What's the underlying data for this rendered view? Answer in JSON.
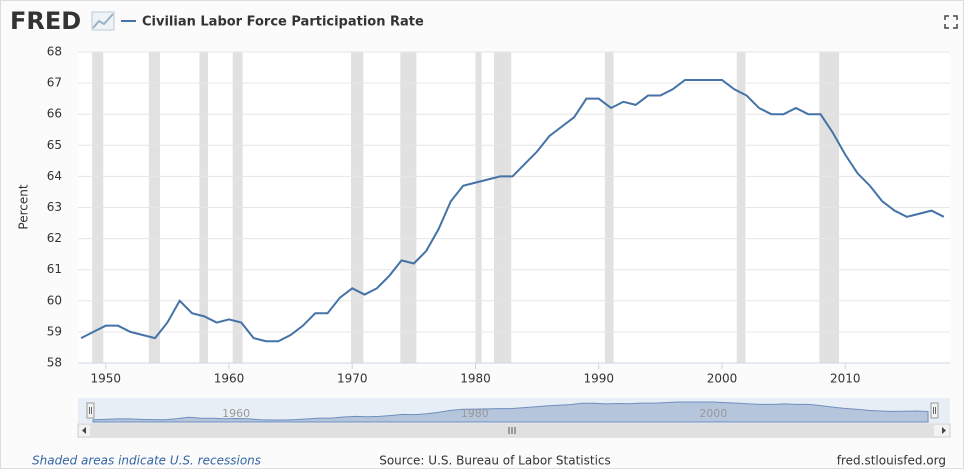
{
  "chart_data": {
    "type": "line",
    "logo": "FRED",
    "ylabel": "Percent",
    "note": "Shaded areas indicate U.S. recessions",
    "source": "Source: U.S. Bureau of Labor Statistics",
    "credit": "fred.stlouisfed.org",
    "x": [
      1948,
      1949,
      1950,
      1951,
      1952,
      1953,
      1954,
      1955,
      1956,
      1957,
      1958,
      1959,
      1960,
      1961,
      1962,
      1963,
      1964,
      1965,
      1966,
      1967,
      1968,
      1969,
      1970,
      1971,
      1972,
      1973,
      1974,
      1975,
      1976,
      1977,
      1978,
      1979,
      1980,
      1981,
      1982,
      1983,
      1984,
      1985,
      1986,
      1987,
      1988,
      1989,
      1990,
      1991,
      1992,
      1993,
      1994,
      1995,
      1996,
      1997,
      1998,
      1999,
      2000,
      2001,
      2002,
      2003,
      2004,
      2005,
      2006,
      2007,
      2008,
      2009,
      2010,
      2011,
      2012,
      2013,
      2014,
      2015,
      2016,
      2017,
      2018
    ],
    "series": [
      {
        "name": "Civilian Labor Force Participation Rate",
        "color": "#4572a7",
        "values": [
          58.8,
          59.0,
          59.2,
          59.2,
          59.0,
          58.9,
          58.8,
          59.3,
          60.0,
          59.6,
          59.5,
          59.3,
          59.4,
          59.3,
          58.8,
          58.7,
          58.7,
          58.9,
          59.2,
          59.6,
          59.6,
          60.1,
          60.4,
          60.2,
          60.4,
          60.8,
          61.3,
          61.2,
          61.6,
          62.3,
          63.2,
          63.7,
          63.8,
          63.9,
          64.0,
          64.0,
          64.4,
          64.8,
          65.3,
          65.6,
          65.9,
          66.5,
          66.5,
          66.2,
          66.4,
          66.3,
          66.6,
          66.6,
          66.8,
          67.1,
          67.1,
          67.1,
          67.1,
          66.8,
          66.6,
          66.2,
          66.0,
          66.0,
          66.2,
          66.0,
          66.0,
          65.4,
          64.7,
          64.1,
          63.7,
          63.2,
          62.9,
          62.7,
          62.8,
          62.9,
          62.7
        ]
      }
    ],
    "recessions": [
      [
        1948.9,
        1949.8
      ],
      [
        1953.5,
        1954.4
      ],
      [
        1957.6,
        1958.3
      ],
      [
        1960.3,
        1961.1
      ],
      [
        1969.9,
        1970.9
      ],
      [
        1973.9,
        1975.2
      ],
      [
        1980.0,
        1980.5
      ],
      [
        1981.5,
        1982.9
      ],
      [
        1990.5,
        1991.2
      ],
      [
        2001.2,
        2001.9
      ],
      [
        2007.9,
        2009.5
      ]
    ],
    "recession_color": "#e1e1e1",
    "xlim": [
      1947.75,
      2018.5
    ],
    "ylim": [
      58,
      68
    ],
    "xticks": [
      1950,
      1960,
      1970,
      1980,
      1990,
      2000,
      2010
    ],
    "yticks": [
      58,
      59,
      60,
      61,
      62,
      63,
      64,
      65,
      66,
      67,
      68
    ],
    "navigator_ticks": [
      1960,
      1980,
      2000
    ],
    "grid": true
  }
}
